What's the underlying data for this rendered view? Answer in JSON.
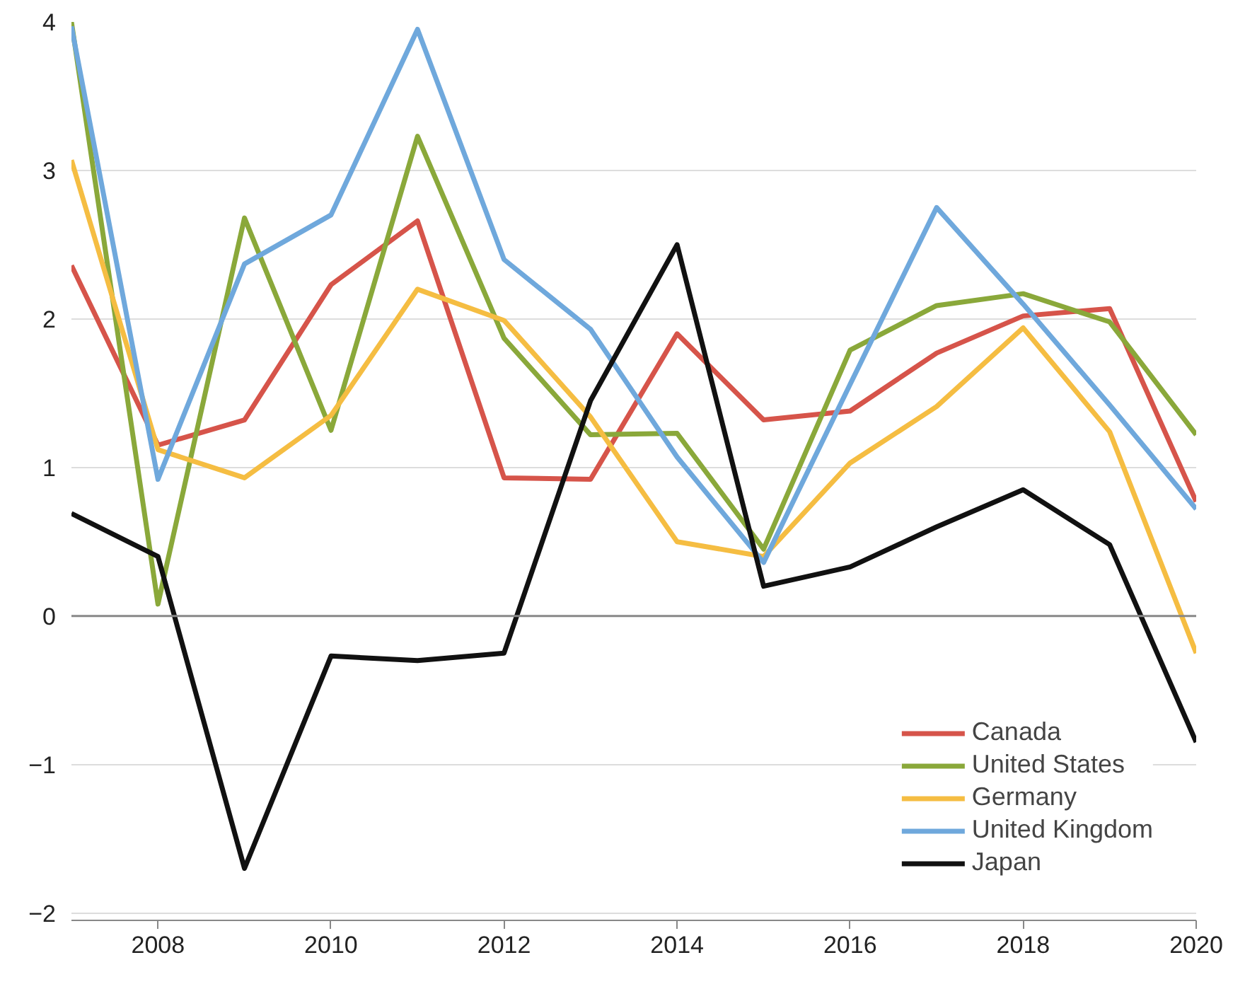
{
  "chart_data": {
    "type": "line",
    "x": [
      2007,
      2008,
      2009,
      2010,
      2011,
      2012,
      2013,
      2014,
      2015,
      2016,
      2017,
      2018,
      2019,
      2020
    ],
    "series": [
      {
        "name": "Canada",
        "color": "#d6544a",
        "values": [
          2.36,
          1.15,
          1.32,
          2.23,
          2.66,
          0.93,
          0.92,
          1.9,
          1.32,
          1.38,
          1.77,
          2.02,
          2.07,
          0.77
        ]
      },
      {
        "name": "United States",
        "color": "#8aa83a",
        "values": [
          4.0,
          0.08,
          2.68,
          1.25,
          3.23,
          1.87,
          1.22,
          1.23,
          0.45,
          1.79,
          2.09,
          2.17,
          1.98,
          1.22
        ]
      },
      {
        "name": "Germany",
        "color": "#f5bd42",
        "values": [
          3.07,
          1.12,
          0.93,
          1.35,
          2.2,
          1.99,
          1.34,
          0.5,
          0.4,
          1.03,
          1.41,
          1.94,
          1.24,
          -0.25
        ]
      },
      {
        "name": "United Kingdom",
        "color": "#6fa8dc",
        "values": [
          3.97,
          0.92,
          2.37,
          2.7,
          3.95,
          2.4,
          1.93,
          1.07,
          0.36,
          1.56,
          2.75,
          2.1,
          1.42,
          0.72
        ]
      },
      {
        "name": "Japan",
        "color": "#111111",
        "values": [
          0.69,
          0.4,
          -1.7,
          -0.27,
          -0.3,
          -0.25,
          1.45,
          2.5,
          0.2,
          0.33,
          0.6,
          0.85,
          0.48,
          -0.85
        ]
      }
    ],
    "xlim": [
      2007,
      2020
    ],
    "xticks": [
      2008,
      2010,
      2012,
      2014,
      2016,
      2018,
      2020
    ],
    "ylim": [
      -2.05,
      4
    ],
    "yticks": [
      {
        "value": -2,
        "label": "−2"
      },
      {
        "value": -1,
        "label": "−1"
      },
      0,
      1,
      2,
      3,
      4
    ],
    "ref_lines": [
      {
        "axis": "y",
        "value": 0,
        "color": "#888888"
      }
    ],
    "grid": "y",
    "legend": "bottom right",
    "line_style": "solid",
    "marker": "none"
  }
}
